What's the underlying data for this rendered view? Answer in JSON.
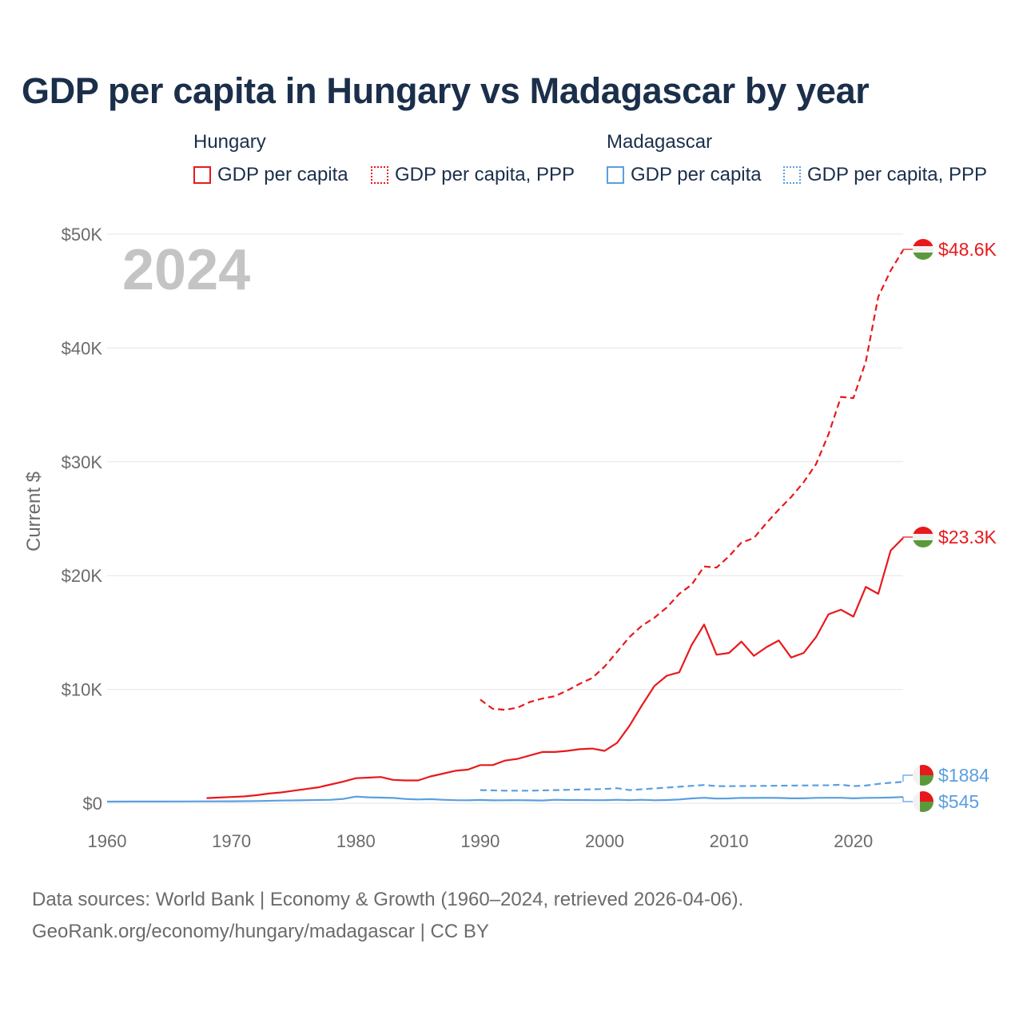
{
  "chart_data": {
    "type": "line",
    "title": "GDP per capita in Hungary vs Madagascar by year",
    "year_label": "2024",
    "ylabel": "Current $",
    "xlim": [
      1960,
      2024
    ],
    "ylim": [
      0,
      50000
    ],
    "x_ticks": [
      1960,
      1970,
      1980,
      1990,
      2000,
      2010,
      2020
    ],
    "y_ticks": [
      {
        "value": 0,
        "label": "$0"
      },
      {
        "value": 10000,
        "label": "$10K"
      },
      {
        "value": 20000,
        "label": "$20K"
      },
      {
        "value": 30000,
        "label": "$30K"
      },
      {
        "value": 40000,
        "label": "$40K"
      },
      {
        "value": 50000,
        "label": "$50K"
      }
    ],
    "legend": {
      "groups": [
        {
          "country": "Hungary",
          "color": "#e8191c",
          "items": [
            {
              "label": "GDP per capita",
              "style": "solid"
            },
            {
              "label": "GDP per capita, PPP",
              "style": "dotted"
            }
          ]
        },
        {
          "country": "Madagascar",
          "color": "#5a9fe0",
          "items": [
            {
              "label": "GDP per capita",
              "style": "solid"
            },
            {
              "label": "GDP per capita, PPP",
              "style": "dotted"
            }
          ]
        }
      ]
    },
    "series": [
      {
        "name": "Hungary GDP per capita",
        "color": "#e8191c",
        "dash": "solid",
        "flag": "hungary",
        "end_label": "$23.3K",
        "x": [
          1968,
          1969,
          1970,
          1971,
          1972,
          1973,
          1974,
          1975,
          1976,
          1977,
          1978,
          1979,
          1980,
          1981,
          1982,
          1983,
          1984,
          1985,
          1986,
          1987,
          1988,
          1989,
          1990,
          1991,
          1992,
          1993,
          1994,
          1995,
          1996,
          1997,
          1998,
          1999,
          2000,
          2001,
          2002,
          2003,
          2004,
          2005,
          2006,
          2007,
          2008,
          2009,
          2010,
          2011,
          2012,
          2013,
          2014,
          2015,
          2016,
          2017,
          2018,
          2019,
          2020,
          2021,
          2022,
          2023,
          2024
        ],
        "values": [
          450,
          500,
          550,
          600,
          700,
          850,
          950,
          1100,
          1250,
          1400,
          1650,
          1900,
          2200,
          2250,
          2300,
          2050,
          2000,
          2000,
          2350,
          2600,
          2850,
          2950,
          3350,
          3350,
          3750,
          3900,
          4200,
          4500,
          4500,
          4600,
          4750,
          4800,
          4600,
          5300,
          6800,
          8600,
          10300,
          11200,
          11500,
          13900,
          15700,
          13050,
          13200,
          14200,
          12950,
          13700,
          14300,
          12800,
          13200,
          14600,
          16600,
          17000,
          16400,
          19000,
          18400,
          22200,
          23300
        ]
      },
      {
        "name": "Hungary GDP per capita, PPP",
        "color": "#e8191c",
        "dash": "dashed",
        "flag": "hungary",
        "end_label": "$48.6K",
        "x": [
          1990,
          1991,
          1992,
          1993,
          1994,
          1995,
          1996,
          1997,
          1998,
          1999,
          2000,
          2001,
          2002,
          2003,
          2004,
          2005,
          2006,
          2007,
          2008,
          2009,
          2010,
          2011,
          2012,
          2013,
          2014,
          2015,
          2016,
          2017,
          2018,
          2019,
          2020,
          2021,
          2022,
          2023,
          2024
        ],
        "values": [
          9100,
          8300,
          8200,
          8400,
          8900,
          9200,
          9400,
          9900,
          10500,
          11000,
          12000,
          13300,
          14600,
          15600,
          16300,
          17200,
          18400,
          19200,
          20800,
          20700,
          21700,
          22900,
          23300,
          24600,
          25800,
          26900,
          28200,
          29800,
          32400,
          35700,
          35600,
          38800,
          44500,
          46800,
          48600
        ]
      },
      {
        "name": "Madagascar GDP per capita",
        "color": "#5a9fe0",
        "dash": "solid",
        "flag": "madagascar",
        "end_label": "$545",
        "x": [
          1960,
          1962,
          1964,
          1966,
          1968,
          1970,
          1972,
          1974,
          1976,
          1978,
          1979,
          1980,
          1981,
          1982,
          1983,
          1984,
          1985,
          1986,
          1987,
          1988,
          1989,
          1990,
          1991,
          1992,
          1993,
          1994,
          1995,
          1996,
          1997,
          1998,
          1999,
          2000,
          2001,
          2002,
          2003,
          2004,
          2005,
          2006,
          2007,
          2008,
          2009,
          2010,
          2011,
          2012,
          2013,
          2014,
          2015,
          2016,
          2017,
          2018,
          2019,
          2020,
          2021,
          2022,
          2023,
          2024
        ],
        "values": [
          140,
          145,
          150,
          155,
          160,
          170,
          190,
          230,
          270,
          300,
          380,
          580,
          520,
          490,
          460,
          370,
          330,
          360,
          300,
          270,
          260,
          290,
          250,
          260,
          270,
          250,
          240,
          300,
          280,
          280,
          270,
          270,
          300,
          270,
          300,
          260,
          280,
          330,
          420,
          480,
          410,
          420,
          470,
          460,
          480,
          460,
          430,
          430,
          470,
          480,
          480,
          430,
          470,
          480,
          500,
          545
        ]
      },
      {
        "name": "Madagascar GDP per capita, PPP",
        "color": "#5a9fe0",
        "dash": "dashed",
        "flag": "madagascar",
        "end_label": "$1884",
        "x": [
          1990,
          1992,
          1994,
          1996,
          1998,
          2000,
          2001,
          2002,
          2004,
          2006,
          2008,
          2009,
          2010,
          2012,
          2014,
          2016,
          2018,
          2019,
          2020,
          2021,
          2022,
          2023,
          2024
        ],
        "values": [
          1150,
          1100,
          1100,
          1150,
          1200,
          1250,
          1320,
          1150,
          1300,
          1450,
          1600,
          1500,
          1500,
          1520,
          1540,
          1560,
          1580,
          1620,
          1500,
          1550,
          1700,
          1800,
          1884
        ]
      }
    ]
  },
  "footer": {
    "line1": "Data sources: World Bank | Economy & Growth (1960–2024, retrieved 2026-04-06).",
    "line2": "GeoRank.org/economy/hungary/madagascar | CC BY"
  }
}
